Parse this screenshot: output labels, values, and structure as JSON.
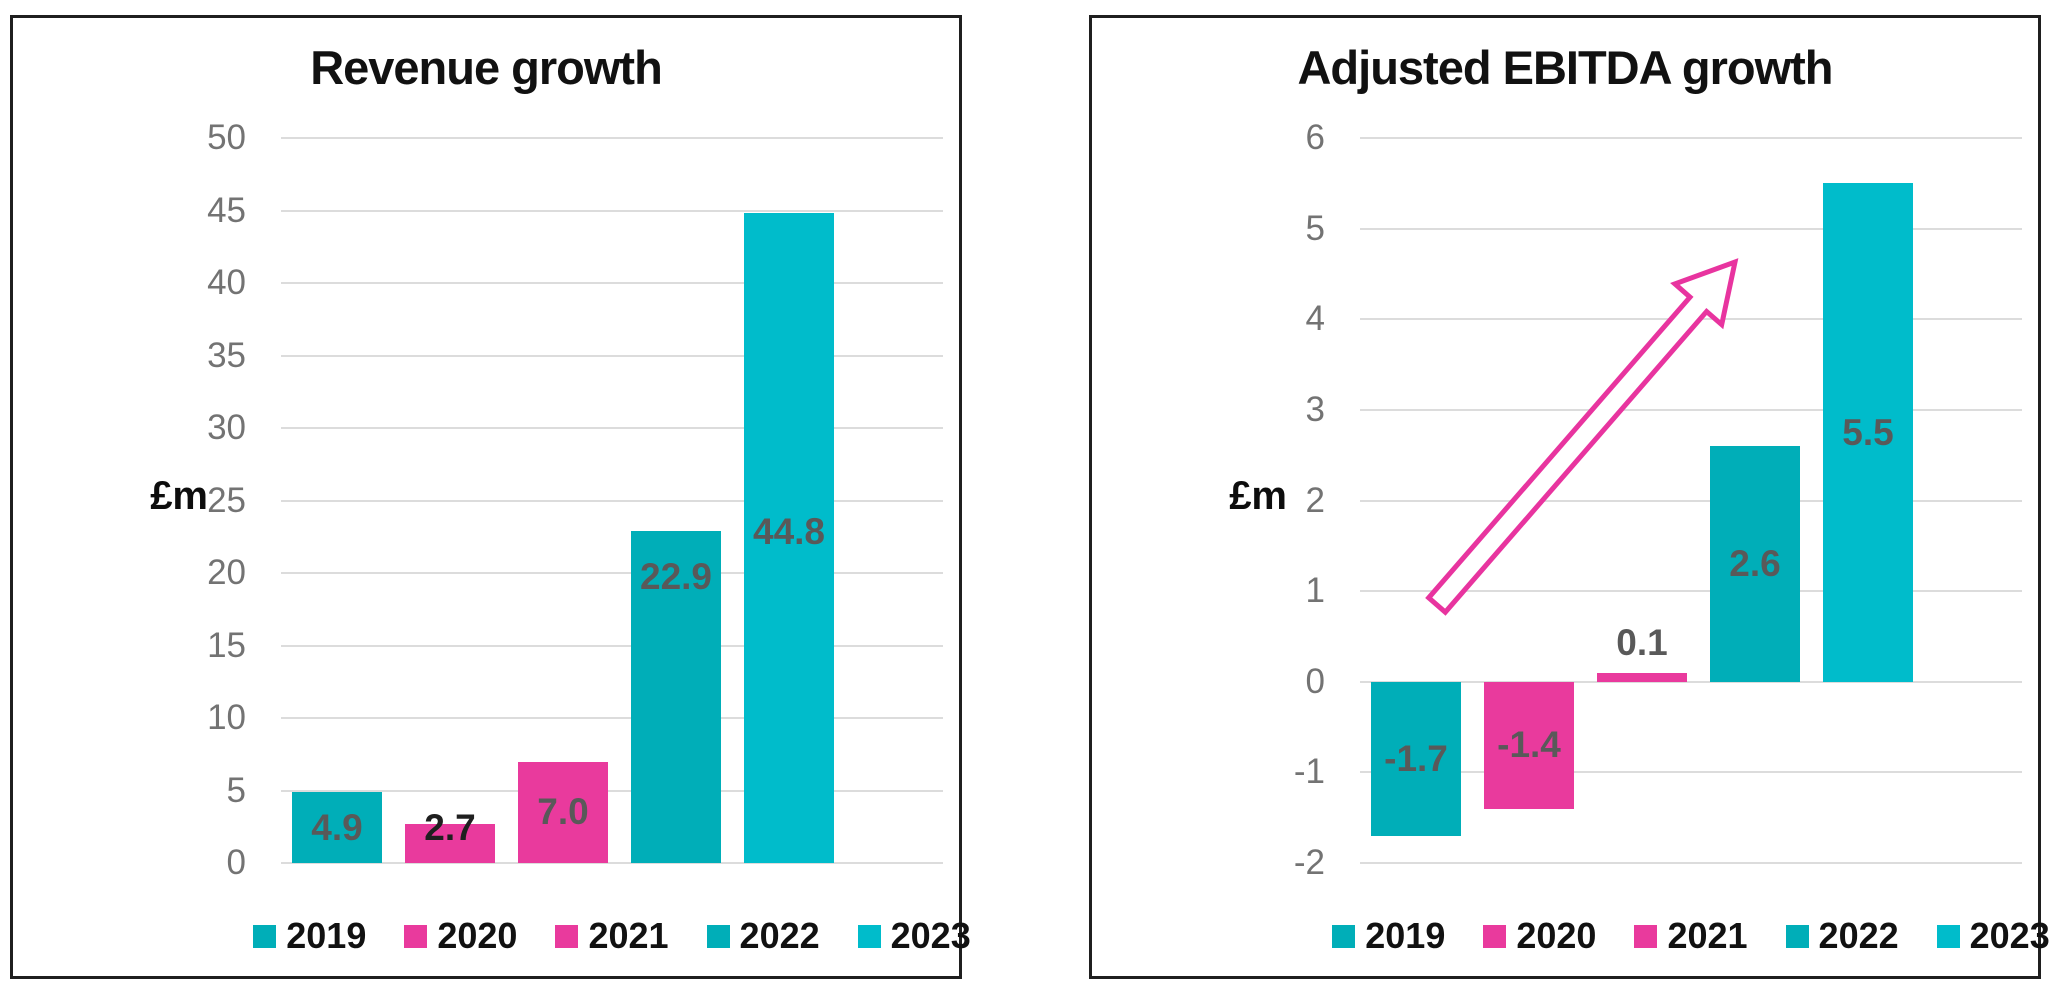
{
  "page": {
    "background": "#ffffff",
    "border_color": "#1f1f1f"
  },
  "colors": {
    "teal": "#00aeb8",
    "teal_light": "#00bccb",
    "pink": "#e93a9d",
    "arrow_pink": "#e8349f",
    "grid": "#dcdcdc",
    "tick_text": "#737373",
    "label_gray": "#595959"
  },
  "chart_data": [
    {
      "type": "bar",
      "title": "Revenue growth",
      "ylabel": "£m",
      "categories": [
        "2019",
        "2020",
        "2021",
        "2022",
        "2023"
      ],
      "values": [
        4.9,
        2.7,
        7.0,
        22.9,
        44.8
      ],
      "value_labels": [
        "4.9",
        "2.7",
        "7.0",
        "22.9",
        "44.8"
      ],
      "label_y_values": [
        2.44,
        2.44,
        3.5,
        19.7,
        22.8
      ],
      "label_colors": [
        "#595959",
        "#1f1f1f",
        "#595959",
        "#595959",
        "#595959"
      ],
      "bar_colors": [
        "#00aeb8",
        "#e93a9d",
        "#e93a9d",
        "#00aeb8",
        "#00bccb"
      ],
      "ylim": [
        0,
        50
      ],
      "ytick_step": 5,
      "yticks": [
        "50",
        "45",
        "40",
        "35",
        "30",
        "25",
        "20",
        "15",
        "10",
        "5",
        "0"
      ],
      "grid": "horizontal",
      "legend": {
        "position": "bottom",
        "entries": [
          {
            "label": "2019",
            "color": "#00aeb8"
          },
          {
            "label": "2020",
            "color": "#e93a9d"
          },
          {
            "label": "2021",
            "color": "#e93a9d"
          },
          {
            "label": "2022",
            "color": "#00aeb8"
          },
          {
            "label": "2023",
            "color": "#00bccb"
          }
        ]
      }
    },
    {
      "type": "bar",
      "title": "Adjusted EBITDA growth",
      "ylabel": "£m",
      "categories": [
        "2019",
        "2020",
        "2021",
        "2022",
        "2023"
      ],
      "values": [
        -1.7,
        -1.4,
        0.1,
        2.6,
        5.5
      ],
      "value_labels": [
        "-1.7",
        "-1.4",
        "0.1",
        "2.6",
        "5.5"
      ],
      "label_y_values": [
        -0.85,
        -0.7,
        0.43,
        1.3,
        2.75
      ],
      "label_colors": [
        "#595959",
        "#595959",
        "#595959",
        "#595959",
        "#595959"
      ],
      "bar_colors": [
        "#00aeb8",
        "#e93a9d",
        "#e93a9d",
        "#00aeb8",
        "#00bccb"
      ],
      "ylim": [
        -2,
        6
      ],
      "ytick_step": 1,
      "yticks": [
        "6",
        "5",
        "4",
        "3",
        "2",
        "1",
        "0",
        "-1",
        "-2"
      ],
      "grid": "horizontal",
      "annotation": {
        "type": "trend-arrow-up",
        "color": "#e8349f"
      },
      "legend": {
        "position": "bottom",
        "entries": [
          {
            "label": "2019",
            "color": "#00aeb8"
          },
          {
            "label": "2020",
            "color": "#e93a9d"
          },
          {
            "label": "2021",
            "color": "#e93a9d"
          },
          {
            "label": "2022",
            "color": "#00aeb8"
          },
          {
            "label": "2023",
            "color": "#00bccb"
          }
        ]
      }
    }
  ]
}
